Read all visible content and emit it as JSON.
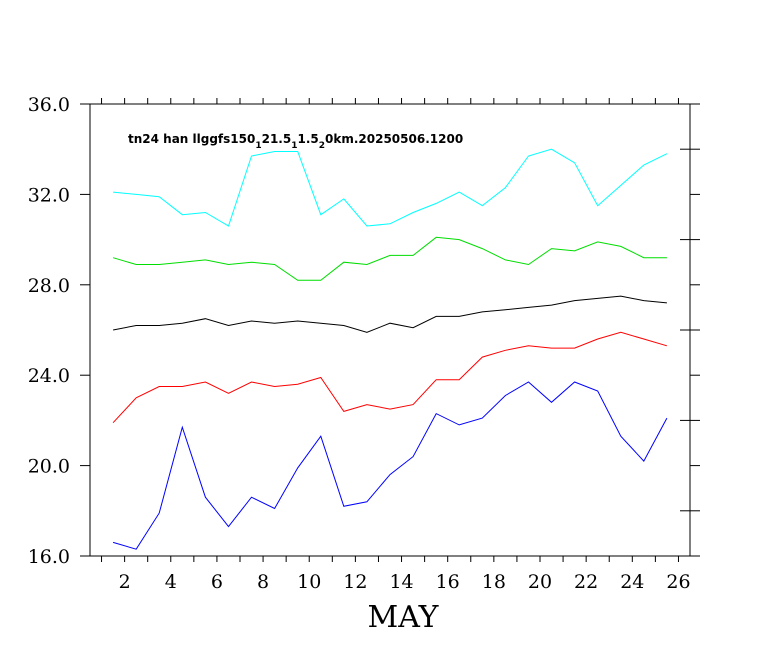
{
  "chart_data": {
    "type": "line",
    "title": {
      "parts": [
        "tn24 han llggfs150",
        "1",
        "21.5",
        "1",
        "1.5",
        "2",
        "0km.20250506.1200"
      ],
      "subscript": [
        false,
        true,
        false,
        true,
        false,
        true,
        false
      ]
    },
    "xlabel": "MAY",
    "ylabel": "",
    "xlim": [
      0.5,
      26.5
    ],
    "ylim": [
      16,
      36
    ],
    "x_ticks": [
      2,
      4,
      6,
      8,
      10,
      12,
      14,
      16,
      18,
      20,
      22,
      24,
      26
    ],
    "x_tick_labels": [
      "2",
      "4",
      "6",
      "8",
      "10",
      "12",
      "14",
      "16",
      "18",
      "20",
      "22",
      "24",
      "26"
    ],
    "y_ticks": [
      16,
      20,
      24,
      28,
      32,
      36
    ],
    "y_tick_labels": [
      "16.0",
      "20.0",
      "24.0",
      "28.0",
      "32.0",
      "36.0"
    ],
    "y_minor_ticks": [
      18,
      22,
      26,
      30,
      34
    ],
    "grid": false,
    "x": [
      1.5,
      2.5,
      3.5,
      4.5,
      5.5,
      6.5,
      7.5,
      8.5,
      9.5,
      10.5,
      11.5,
      12.5,
      13.5,
      14.5,
      15.5,
      16.5,
      17.5,
      18.5,
      19.5,
      20.5,
      21.5,
      22.5,
      23.5,
      24.5,
      25.5
    ],
    "series": [
      {
        "color": "#00ffff",
        "values": [
          32.1,
          32.0,
          31.9,
          31.1,
          31.2,
          30.6,
          33.7,
          33.9,
          33.9,
          31.1,
          31.8,
          30.6,
          30.7,
          31.2,
          31.6,
          32.1,
          31.5,
          32.3,
          33.7,
          34.0,
          33.4,
          31.5,
          32.4,
          33.3,
          33.8
        ]
      },
      {
        "color": "#00dd00",
        "values": [
          29.2,
          28.9,
          28.9,
          29.0,
          29.1,
          28.9,
          29.0,
          28.9,
          28.2,
          28.2,
          29.0,
          28.9,
          29.3,
          29.3,
          30.1,
          30.0,
          29.6,
          29.1,
          28.9,
          29.6,
          29.5,
          29.9,
          29.7,
          29.2,
          29.2
        ]
      },
      {
        "color": "#000000",
        "values": [
          26.0,
          26.2,
          26.2,
          26.3,
          26.5,
          26.2,
          26.4,
          26.3,
          26.4,
          26.3,
          26.2,
          25.9,
          26.3,
          26.1,
          26.6,
          26.6,
          26.8,
          26.9,
          27.0,
          27.1,
          27.3,
          27.4,
          27.5,
          27.3,
          27.2
        ]
      },
      {
        "color": "#ff0000",
        "values": [
          21.9,
          23.0,
          23.5,
          23.5,
          23.7,
          23.2,
          23.7,
          23.5,
          23.6,
          23.9,
          22.4,
          22.7,
          22.5,
          22.7,
          23.8,
          23.8,
          24.8,
          25.1,
          25.3,
          25.2,
          25.2,
          25.6,
          25.9,
          25.6,
          25.3
        ]
      },
      {
        "color": "#0000ff",
        "values": [
          16.6,
          16.3,
          17.9,
          21.7,
          18.6,
          17.3,
          18.6,
          18.1,
          19.9,
          21.3,
          18.2,
          18.4,
          19.6,
          20.4,
          22.3,
          21.8,
          22.1,
          23.1,
          23.7,
          22.8,
          23.7,
          23.3,
          21.3,
          20.2,
          22.1
        ]
      }
    ]
  }
}
